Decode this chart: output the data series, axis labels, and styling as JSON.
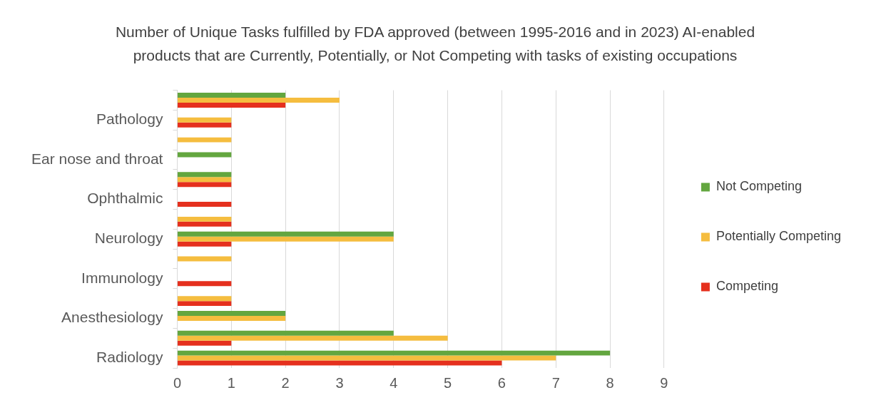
{
  "chart_data": {
    "type": "bar",
    "orientation": "horizontal",
    "title": "Number of Unique Tasks fulfilled by FDA approved (between 1995-2016 and in 2023) AI-enabled products that are Currently, Potentially, or Not Competing with tasks of existing occupations",
    "categories": [
      null,
      "Pathology",
      null,
      "Ear nose and throat",
      null,
      "Ophthalmic",
      null,
      "Neurology",
      null,
      "Immunology",
      null,
      "Anesthesiology",
      null,
      "Radiology"
    ],
    "series": [
      {
        "name": "Not Competing",
        "color": "#63a63f",
        "values": [
          2,
          null,
          null,
          1,
          1,
          null,
          null,
          4,
          null,
          null,
          null,
          2,
          4,
          8
        ]
      },
      {
        "name": "Potentially Competing",
        "color": "#f5bd3f",
        "values": [
          3,
          1,
          1,
          null,
          1,
          null,
          1,
          4,
          1,
          null,
          1,
          2,
          5,
          7
        ]
      },
      {
        "name": "Competing",
        "color": "#e5301e",
        "values": [
          2,
          1,
          null,
          null,
          1,
          1,
          1,
          1,
          null,
          1,
          1,
          null,
          1,
          6
        ]
      }
    ],
    "xlim": [
      0,
      9
    ],
    "xticks": [
      0,
      1,
      2,
      3,
      4,
      5,
      6,
      7,
      8,
      9
    ],
    "grid": "x",
    "legend": "right"
  }
}
